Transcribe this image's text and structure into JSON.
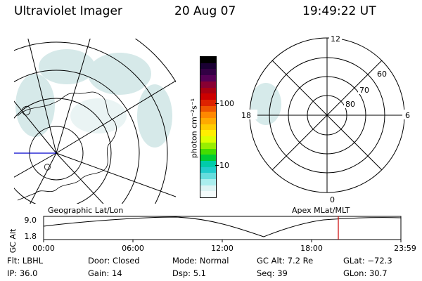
{
  "header": {
    "title": "Ultraviolet Imager",
    "date": "20 Aug 07",
    "time": "19:49:22 UT"
  },
  "colorbar": {
    "label": "photon cm⁻²s⁻¹",
    "ticks": [
      "100",
      "10"
    ],
    "colors": [
      "#000000",
      "#1a0033",
      "#330044",
      "#550055",
      "#880033",
      "#aa0011",
      "#cc0000",
      "#dd2200",
      "#ee5500",
      "#ff8800",
      "#ffaa00",
      "#ffcc00",
      "#ffee00",
      "#ddff00",
      "#99ee00",
      "#44dd00",
      "#00cc33",
      "#00ccaa",
      "#22cccc",
      "#66dddd",
      "#aaeeee",
      "#ddf4f4",
      "#f4fbfb"
    ]
  },
  "geo_map": {
    "label": "Geographic Lat/Lon"
  },
  "polar_map": {
    "label": "Apex MLat/MLT",
    "mlt_labels": {
      "top": "12",
      "right": "6",
      "bottom": "0",
      "left": "18"
    },
    "lat_labels": [
      "60",
      "70",
      "80"
    ]
  },
  "altitude_plot": {
    "ylabel": "GC Alt",
    "yticks": [
      "9.0",
      "1.8"
    ],
    "xticks": [
      "00:00",
      "06:00",
      "12:00",
      "18:00",
      "23:59"
    ],
    "marker_color": "#cc0000"
  },
  "info": {
    "row1": [
      {
        "label": "Flt:",
        "value": "LBHL"
      },
      {
        "label": "Door:",
        "value": "Closed"
      },
      {
        "label": "Mode:",
        "value": "Normal"
      },
      {
        "label": "GC Alt:",
        "value": "7.2 Re"
      },
      {
        "label": "GLat:",
        "value": "−72.3"
      }
    ],
    "row2": [
      {
        "label": "IP:",
        "value": "36.0"
      },
      {
        "label": "Gain:",
        "value": "14"
      },
      {
        "label": "Dsp:",
        "value": "5.1"
      },
      {
        "label": "Seq:",
        "value": "39"
      },
      {
        "label": "GLon:",
        "value": "30.7"
      }
    ]
  }
}
